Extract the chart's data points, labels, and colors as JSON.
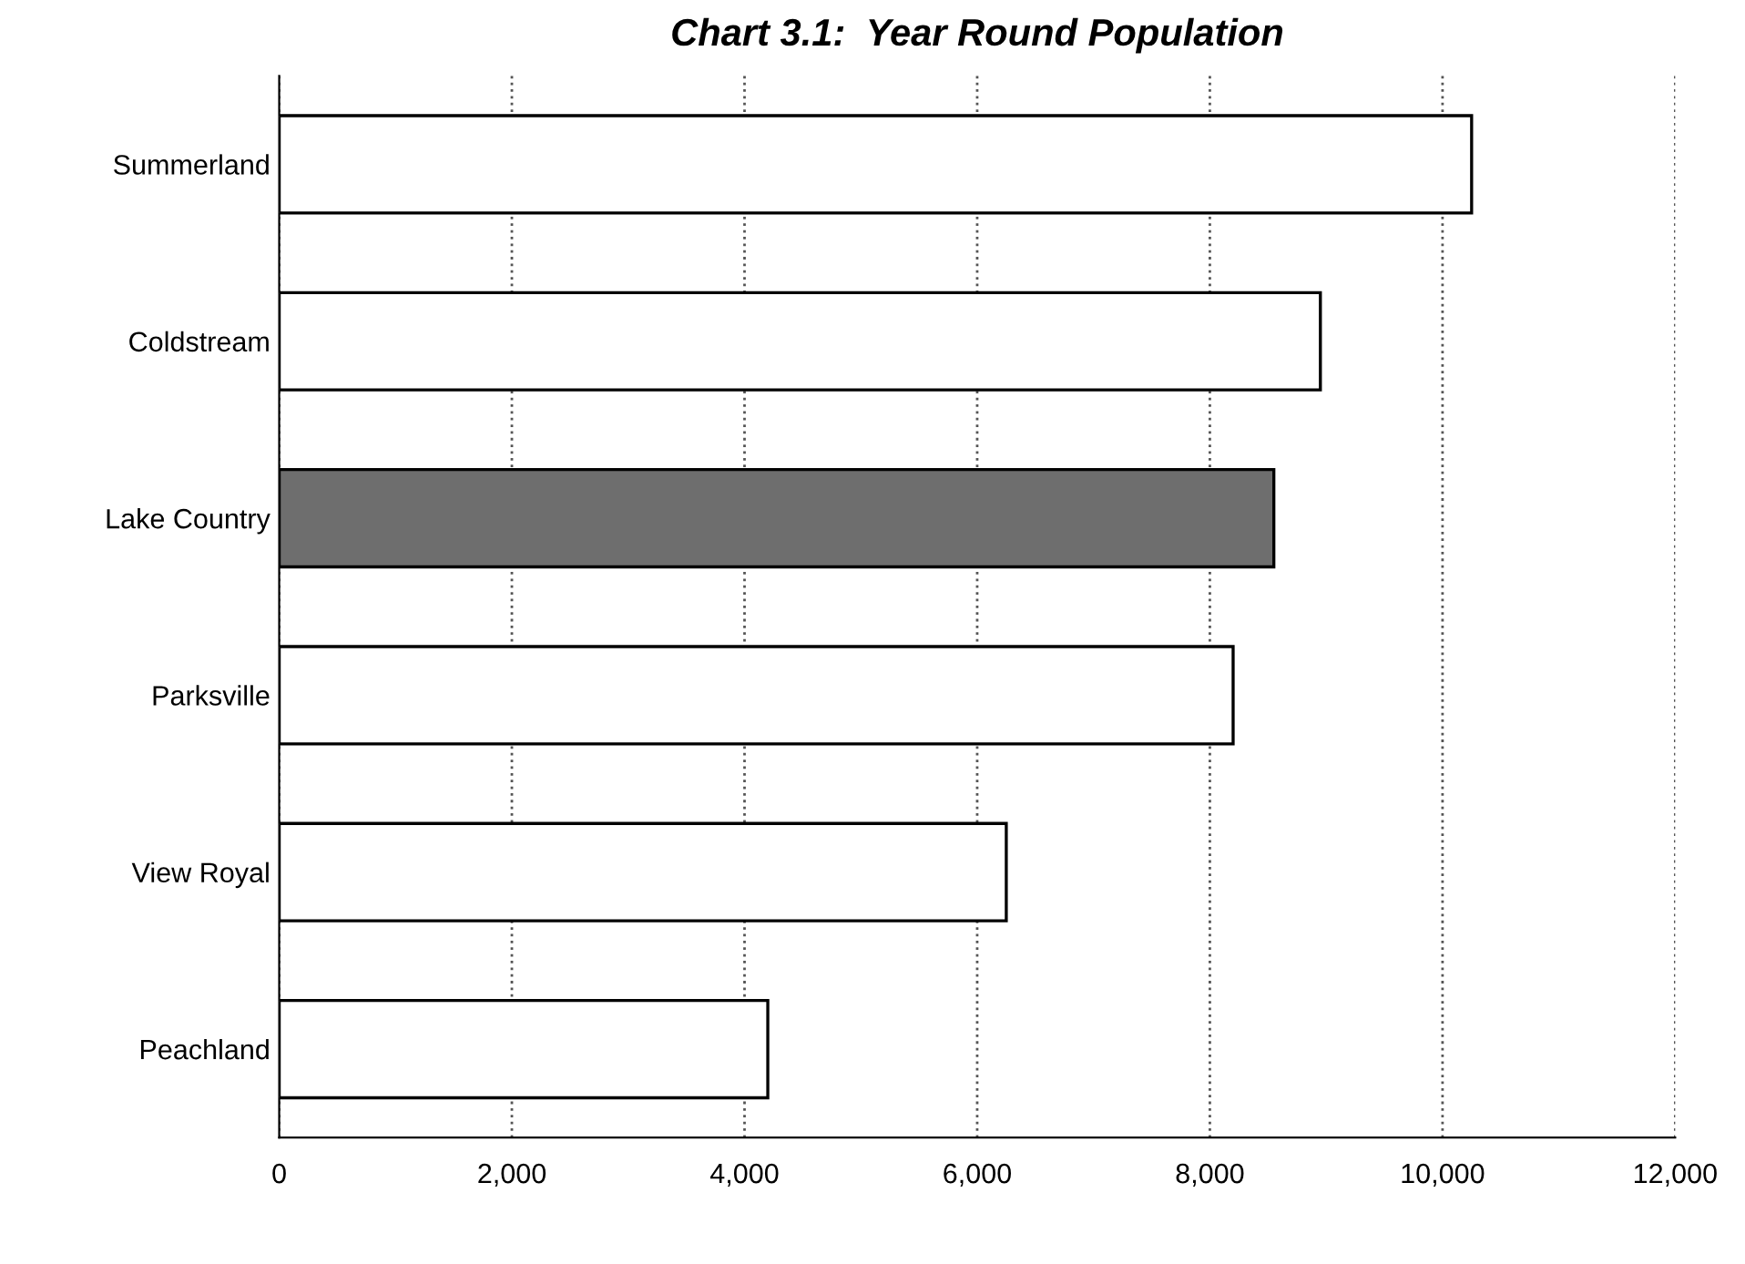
{
  "chart_data": {
    "type": "bar",
    "orientation": "horizontal",
    "title": "Chart 3.1:  Year Round Population",
    "categories": [
      "Summerland",
      "Coldstream",
      "Lake Country",
      "Parksville",
      "View Royal",
      "Peachland"
    ],
    "values": [
      10250,
      8950,
      8550,
      8200,
      6250,
      4200
    ],
    "colors": [
      "#ffffff",
      "#ffffff",
      "#6e6e6e",
      "#ffffff",
      "#ffffff",
      "#ffffff"
    ],
    "xlim": [
      0,
      12000
    ],
    "xticks": [
      0,
      {
        "value": 2000,
        "label": "2,000"
      },
      {
        "value": 4000,
        "label": "4,000"
      },
      {
        "value": 6000,
        "label": "6,000"
      },
      {
        "value": 8000,
        "label": "8,000"
      },
      {
        "value": 10000,
        "label": "10,000"
      },
      {
        "value": 12000,
        "label": "12,000"
      }
    ],
    "grid": "x"
  }
}
